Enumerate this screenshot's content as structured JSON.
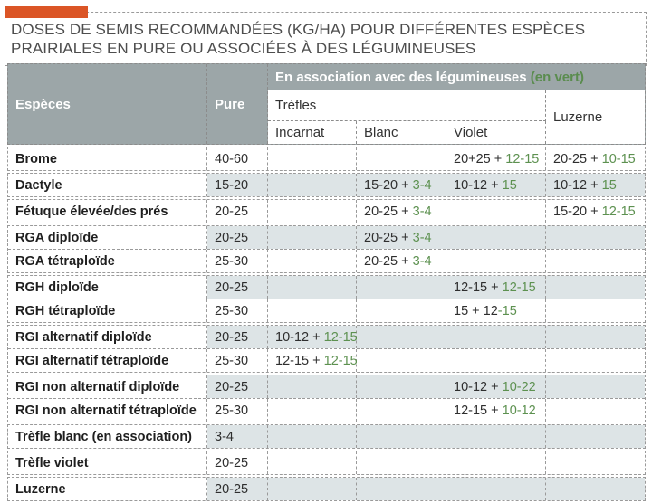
{
  "title": {
    "line1": "DOSES DE SEMIS RECOMMANDÉES (KG/HA) POUR DIFFÉRENTES ESPÈCES",
    "line2": "PRAIRIALES EN PURE OU ASSOCIÉES À DES LÉGUMINEUSES"
  },
  "colors": {
    "accent_orange": "#db5526",
    "header_gray": "#9ca6a8",
    "green_values": "#5d9150",
    "shaded_row": "#dde4e6",
    "border_dashed": "#9a9a9a",
    "title_text": "#4d4d4d"
  },
  "table": {
    "header": {
      "especes": "Espèces",
      "pure": "Pure",
      "association_main": "En association avec des légumineuses ",
      "association_note": "(en vert)",
      "trefles": "Trèfles",
      "sub_incarnat": "Incarnat",
      "sub_blanc": "Blanc",
      "sub_violet": "Violet",
      "luzerne": "Luzerne"
    },
    "assoc_columns": [
      "Trèfles Incarnat",
      "Trèfles Blanc",
      "Trèfles Violet",
      "Luzerne"
    ],
    "groups": [
      {
        "rows": [
          {
            "species": "Brome",
            "pure": "40-60",
            "cells": [
              null,
              null,
              {
                "b": "20+25 + ",
                "g": "12-15"
              },
              {
                "b": "20-25 + ",
                "g": "10-15"
              }
            ]
          }
        ]
      },
      {
        "rows": [
          {
            "species": "Dactyle",
            "pure": "15-20",
            "cells": [
              null,
              {
                "b": "15-20 + ",
                "g": "3-4"
              },
              {
                "b": "10-12 + ",
                "g": "15"
              },
              {
                "b": "10-12 + ",
                "g": "15"
              }
            ]
          }
        ]
      },
      {
        "rows": [
          {
            "species": "Fétuque élevée/des prés",
            "pure": "20-25",
            "cells": [
              null,
              {
                "b": "20-25 + ",
                "g": "3-4"
              },
              null,
              {
                "b": "15-20 + ",
                "g": "12-15"
              }
            ]
          }
        ]
      },
      {
        "rows": [
          {
            "species": "RGA diploïde",
            "pure": "20-25",
            "cells": [
              null,
              {
                "b": "20-25 + ",
                "g": "3-4"
              },
              null,
              null
            ]
          },
          {
            "species": "RGA tétraploïde",
            "pure": "25-30",
            "cells": [
              null,
              {
                "b": "20-25 + ",
                "g": "3-4"
              },
              null,
              null
            ]
          }
        ]
      },
      {
        "rows": [
          {
            "species": "RGH diploïde",
            "pure": "20-25",
            "cells": [
              null,
              null,
              {
                "b": "12-15 + ",
                "g": "12-15"
              },
              null
            ]
          },
          {
            "species": "RGH tétraploïde",
            "pure": "25-30",
            "cells": [
              null,
              null,
              {
                "b": "15 + 12",
                "g": "-15"
              },
              null
            ]
          }
        ]
      },
      {
        "rows": [
          {
            "species": "RGI alternatif diploïde",
            "pure": "20-25",
            "cells": [
              {
                "b": "10-12 + ",
                "g": "12-15"
              },
              null,
              null,
              null
            ]
          },
          {
            "species": "RGI alternatif tétraploïde",
            "pure": "25-30",
            "cells": [
              {
                "b": "12-15 + ",
                "g": "12-15"
              },
              null,
              null,
              null
            ]
          }
        ]
      },
      {
        "rows": [
          {
            "species": "RGI non alternatif diploïde",
            "pure": "20-25",
            "cells": [
              null,
              null,
              {
                "b": "10-12 + ",
                "g": "10-22"
              },
              null
            ]
          },
          {
            "species": "RGI non alternatif tétraploïde",
            "pure": "25-30",
            "cells": [
              null,
              null,
              {
                "b": "12-15 + ",
                "g": "10-12"
              },
              null
            ]
          }
        ]
      },
      {
        "rows": [
          {
            "species": "Trèfle blanc (en association)",
            "pure": "3-4",
            "cells": [
              null,
              null,
              null,
              null
            ]
          }
        ]
      },
      {
        "rows": [
          {
            "species": "Trèfle violet",
            "pure": "20-25",
            "cells": [
              null,
              null,
              null,
              null
            ]
          }
        ]
      },
      {
        "rows": [
          {
            "species": "Luzerne",
            "pure": "20-25",
            "cells": [
              null,
              null,
              null,
              null
            ]
          }
        ]
      }
    ]
  }
}
